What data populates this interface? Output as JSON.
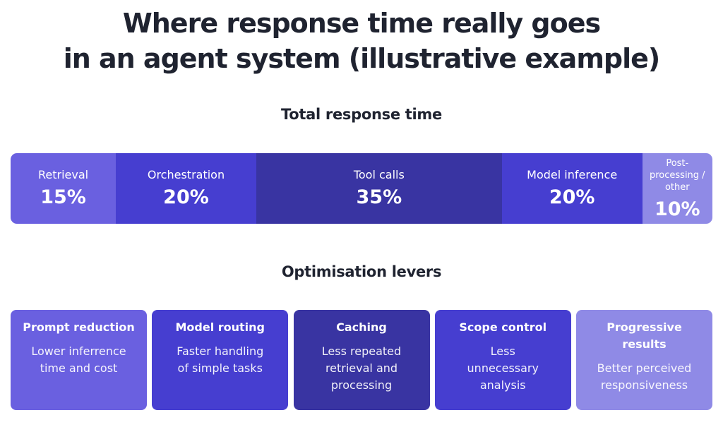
{
  "title_lines": [
    "Where response time really goes",
    "in an agent system (illustrative example)"
  ],
  "chart_data": {
    "type": "bar",
    "subtype": "100% stacked horizontal",
    "title": "Total response time",
    "categories": [
      "Retrieval",
      "Orchestration",
      "Tool calls",
      "Model inference",
      "Post-processing / other"
    ],
    "values": [
      15,
      20,
      35,
      20,
      10
    ],
    "value_labels": [
      "15%",
      "20%",
      "35%",
      "20%",
      "10%"
    ],
    "colors": [
      "#6a60e0",
      "#463ed0",
      "#3934a2",
      "#463ed0",
      "#8f8ae6"
    ],
    "unit": "%",
    "total": 100
  },
  "levers": {
    "heading": "Optimisation levers",
    "items": [
      {
        "title": "Prompt reduction",
        "desc": "Lower inferrence time and cost",
        "color": "#6a60e0"
      },
      {
        "title": "Model routing",
        "desc": "Faster handling of simple tasks",
        "color": "#463ed0"
      },
      {
        "title": "Caching",
        "desc": "Less repeated retrieval and processing",
        "color": "#3934a2"
      },
      {
        "title": "Scope control",
        "desc": "Less unnecessary analysis",
        "color": "#463ed0"
      },
      {
        "title": "Progressive results",
        "desc": "Better perceived responsiveness",
        "color": "#8f8ae6"
      }
    ]
  }
}
